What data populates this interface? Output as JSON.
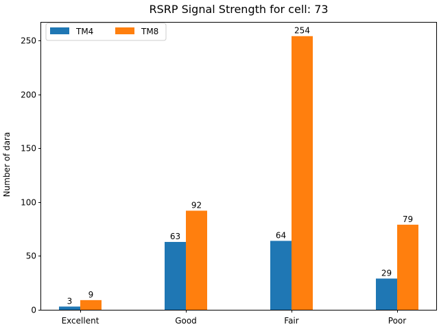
{
  "chart_data": {
    "type": "bar",
    "title": "RSRP Signal Strength for cell: 73",
    "xlabel": "",
    "ylabel": "Number of dara",
    "categories": [
      "Excellent",
      "Good",
      "Fair",
      "Poor"
    ],
    "series": [
      {
        "name": "TM4",
        "color": "#1f77b4",
        "values": [
          3,
          63,
          64,
          29
        ]
      },
      {
        "name": "TM8",
        "color": "#ff7f0e",
        "values": [
          9,
          92,
          254,
          79
        ]
      }
    ],
    "ylim": [
      0,
      266.55
    ],
    "yticks": [
      0,
      50,
      100,
      150,
      200,
      250
    ],
    "legend": "top-left",
    "grid": false
  }
}
